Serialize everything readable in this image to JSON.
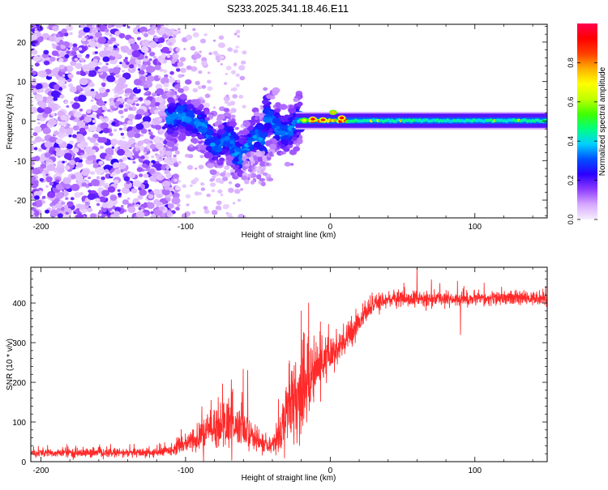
{
  "title": "S233.2025.341.18.46.E11",
  "chart_data": [
    {
      "type": "heatmap",
      "title": "S233.2025.341.18.46.E11",
      "xlabel": "Height of straight line (km)",
      "ylabel": "Frequency (Hz)",
      "xlim": [
        -207,
        150
      ],
      "ylim": [
        -24.5,
        24.5
      ],
      "xticks": [
        -200,
        -100,
        0,
        100
      ],
      "yticks": [
        -20,
        -10,
        0,
        10,
        20
      ],
      "grid": false,
      "colorbar": {
        "label": "Normalized spectral amplitude",
        "range": [
          0.0,
          1.0
        ],
        "ticks": [
          0.0,
          0.2,
          0.4,
          0.6,
          0.8
        ],
        "colormap": [
          "#f7f0ff",
          "#d6a8ff",
          "#8e3cff",
          "#2b00ff",
          "#0050ff",
          "#00d0ff",
          "#00ff80",
          "#40ff00",
          "#c0ff00",
          "#ffff00",
          "#ffb000",
          "#ff4000",
          "#ff0000",
          "#ff0050"
        ]
      },
      "features": [
        {
          "region": "noise",
          "x_range": [
            -207,
            -115
          ],
          "freq_range": [
            -24.5,
            24.5
          ],
          "amplitude": "0.0-0.25 scattered"
        },
        {
          "region": "emerging",
          "x_range": [
            -115,
            -20
          ],
          "freq_range": [
            -15,
            8
          ],
          "amplitude": "0.1-0.3 blobs"
        },
        {
          "region": "signal",
          "x_range": [
            -20,
            150
          ],
          "freq_range": [
            -0.8,
            1.0
          ],
          "amplitude": "0.3-0.45 steady band with peaks near 0.8-0.9 between -20 and 10"
        }
      ]
    },
    {
      "type": "line",
      "title": "",
      "xlabel": "Height of straight line (km)",
      "ylabel": "SNR (10 * v/v)",
      "xlim": [
        -207,
        150
      ],
      "ylim": [
        0,
        490
      ],
      "xticks": [
        -200,
        -100,
        0,
        100
      ],
      "yticks": [
        0,
        100,
        200,
        300,
        400
      ],
      "grid": false,
      "series": [
        {
          "name": "SNR",
          "color": "#ff2a2a",
          "trend_x": [
            -207,
            -120,
            -110,
            -100,
            -90,
            -80,
            -70,
            -60,
            -50,
            -42,
            -35,
            -30,
            -25,
            -20,
            -15,
            -10,
            -5,
            0,
            5,
            10,
            15,
            20,
            25,
            30,
            40,
            60,
            100,
            150
          ],
          "trend_y": [
            22,
            22,
            30,
            45,
            60,
            90,
            95,
            80,
            50,
            35,
            70,
            140,
            160,
            170,
            200,
            230,
            250,
            265,
            280,
            300,
            330,
            355,
            375,
            395,
            410,
            410,
            410,
            412
          ],
          "noise": [
            10,
            10,
            12,
            20,
            35,
            55,
            55,
            45,
            25,
            15,
            45,
            80,
            90,
            90,
            80,
            70,
            55,
            50,
            45,
            40,
            30,
            25,
            20,
            20,
            18,
            18,
            15,
            15
          ],
          "notable_peaks": [
            [
              -57,
              230
            ],
            [
              -20,
              380
            ],
            [
              -15,
              400
            ],
            [
              60,
              490
            ],
            [
              88,
              455
            ]
          ],
          "notable_dips": [
            [
              90,
              320
            ]
          ]
        }
      ]
    }
  ]
}
